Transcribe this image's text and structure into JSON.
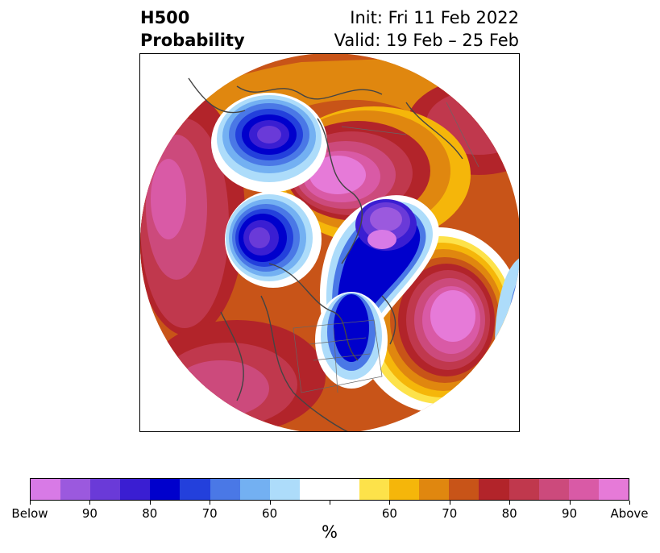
{
  "title": {
    "left_line1": "H500",
    "left_line2": "Probability",
    "right_line1": "Init: Fri 11 Feb 2022",
    "right_line2": "Valid: 19 Feb – 25 Feb"
  },
  "map": {
    "projection": "polar-stereographic-north",
    "variable": "H500 anomaly probability",
    "features": [
      {
        "name": "below-center-greenland",
        "category": "Below"
      },
      {
        "name": "below-center-hudson-bay",
        "category": "Below"
      },
      {
        "name": "below-center-siberia",
        "category": "Below"
      },
      {
        "name": "above-center-north-atlantic",
        "category": "Above"
      },
      {
        "name": "above-center-north-pacific",
        "category": "Above"
      },
      {
        "name": "above-center-eastern-europe",
        "category": "Above"
      }
    ]
  },
  "colorbar": {
    "colors": [
      "#d87ae6",
      "#9b59de",
      "#6a3ad8",
      "#3a1ed2",
      "#0000cc",
      "#2340dc",
      "#4a78e6",
      "#73b0f2",
      "#addcfa",
      "#ffffff",
      "#ffffff",
      "#fde24a",
      "#f5b60a",
      "#e0870f",
      "#c85418",
      "#b2242a",
      "#c0384d",
      "#cc4a7c",
      "#d95aa6",
      "#e67ad8"
    ],
    "tick_labels": [
      "Below",
      "90",
      "80",
      "70",
      "60",
      "",
      "60",
      "70",
      "80",
      "90",
      "Above"
    ],
    "unit_label": "%"
  }
}
